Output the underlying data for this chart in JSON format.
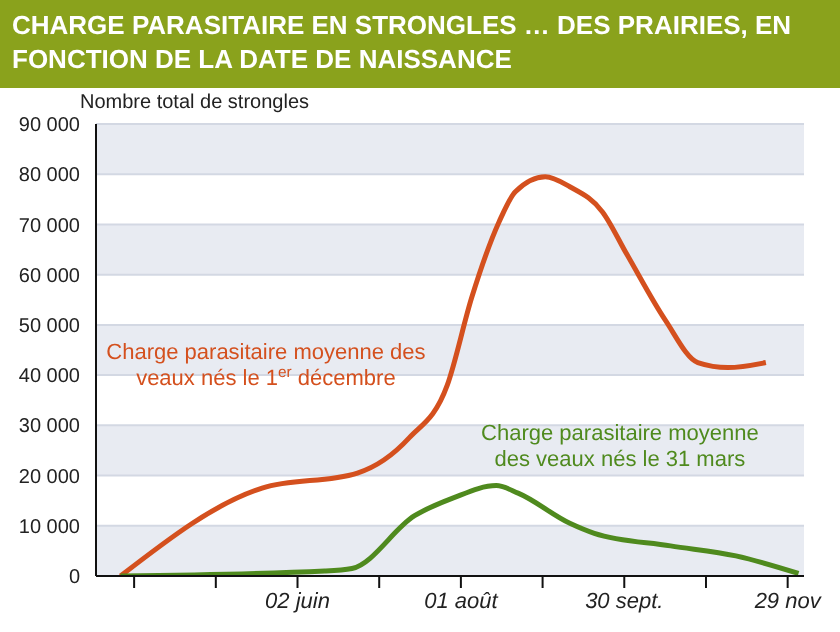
{
  "chart_data": {
    "type": "line",
    "title": "CHARGE PARASITAIRE EN STRONGLES … DES PRAIRIES, EN FONCTION DE LA DATE DE NAISSANCE",
    "ylabel": "Nombre total de strongles",
    "xlim": [
      "--03-20",
      "--12-05"
    ],
    "xticks": [
      {
        "value": "--04-03",
        "label": null
      },
      {
        "value": "--05-03",
        "label": null
      },
      {
        "value": "--06-02",
        "label": "02 juin"
      },
      {
        "value": "--07-02",
        "label": null
      },
      {
        "value": "--08-01",
        "label": "01 août"
      },
      {
        "value": "--08-31",
        "label": null
      },
      {
        "value": "--09-30",
        "label": "30 sept."
      },
      {
        "value": "--10-30",
        "label": null
      },
      {
        "value": "--11-29",
        "label": "29 nov"
      }
    ],
    "ylim": [
      0,
      90000
    ],
    "yticks": [
      {
        "value": 0,
        "label": "0"
      },
      {
        "value": 10000,
        "label": "10 000"
      },
      {
        "value": 20000,
        "label": "20 000"
      },
      {
        "value": 30000,
        "label": "30 000"
      },
      {
        "value": 40000,
        "label": "40 000"
      },
      {
        "value": 50000,
        "label": "50 000"
      },
      {
        "value": 60000,
        "label": "60 000"
      },
      {
        "value": 70000,
        "label": "70 000"
      },
      {
        "value": 80000,
        "label": "80 000"
      },
      {
        "value": 90000,
        "label": "90 000"
      }
    ],
    "grid": "y",
    "marker": "none",
    "line_style": "solid",
    "series": [
      {
        "name": "Charge parasitaire moyenne des veaux nés le 1$^{er}$ décembre",
        "color": "#d4501e",
        "x": [
          "--03-29",
          "--05-20",
          "--06-24",
          "--07-13",
          "--07-27",
          "--08-05",
          "--08-15",
          "--08-21",
          "--09-01",
          "--09-10",
          "--09-22",
          "--10-01",
          "--10-15",
          "--10-27",
          "--11-07",
          "--11-21"
        ],
        "values": [
          0,
          17500,
          20500,
          27500,
          38000,
          55500,
          70500,
          76500,
          79500,
          77500,
          72500,
          64000,
          51000,
          42500,
          41500,
          42500
        ]
      },
      {
        "name": "Charge parasitaire moyenne des veaux nés le 31 mars",
        "color": "#4f8a1e",
        "x": [
          "--03-29",
          "--06-12",
          "--06-22",
          "--07-15",
          "--07-29",
          "--08-14",
          "--08-22",
          "--09-10",
          "--09-19",
          "--10-17",
          "--11-10",
          "--12-03"
        ],
        "values": [
          0,
          1000,
          1500,
          12000,
          15500,
          18000,
          16500,
          10500,
          8500,
          6000,
          4000,
          500
        ]
      }
    ]
  }
}
